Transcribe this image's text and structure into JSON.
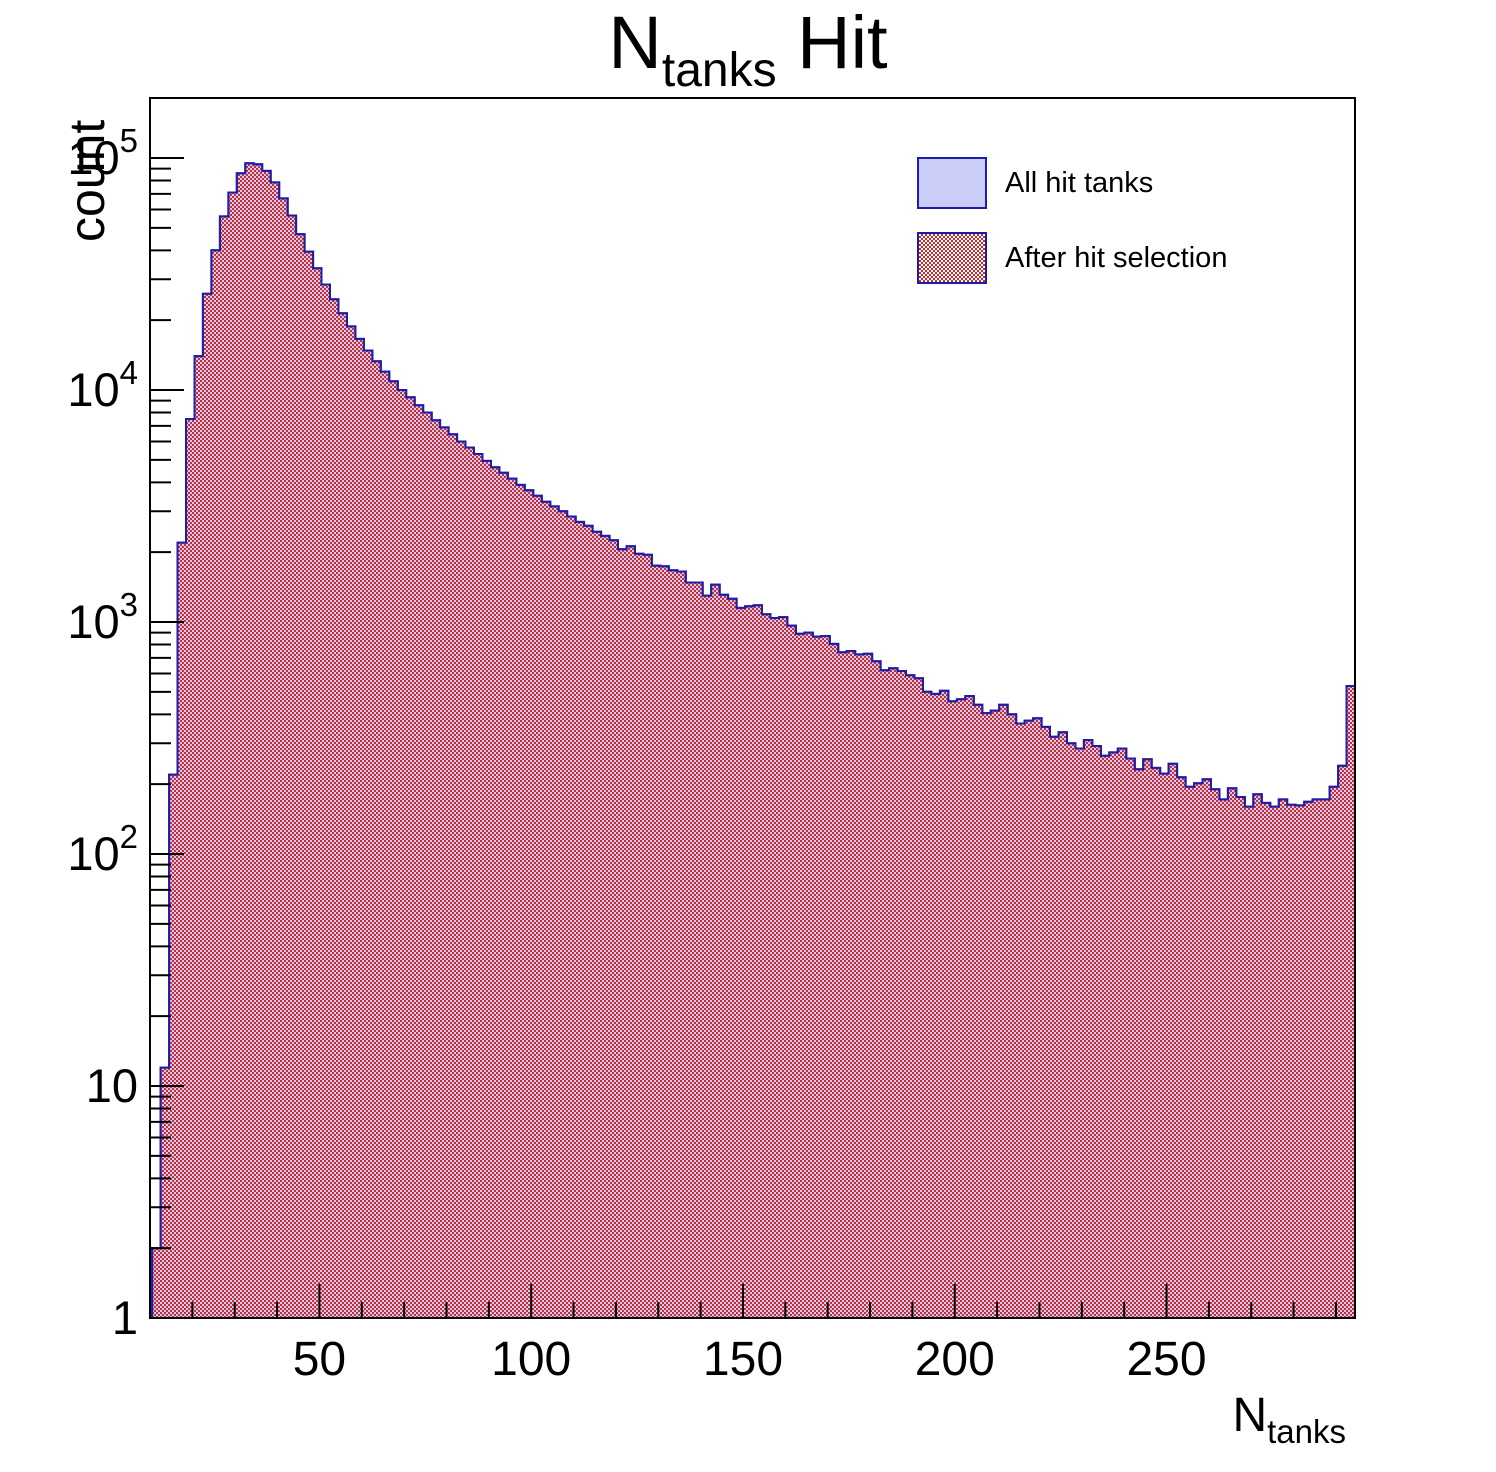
{
  "title": {
    "prefix": "N",
    "subscript": "tanks",
    "suffix": " Hit"
  },
  "axes": {
    "y_label": "count",
    "x_label_prefix": "N",
    "x_label_subscript": "tanks",
    "y_tick_labels": [
      {
        "base": "1",
        "exp": "",
        "value": 1
      },
      {
        "base": "10",
        "exp": "",
        "value": 10
      },
      {
        "base": "10",
        "exp": "2",
        "value": 100
      },
      {
        "base": "10",
        "exp": "3",
        "value": 1000
      },
      {
        "base": "10",
        "exp": "4",
        "value": 10000
      },
      {
        "base": "10",
        "exp": "5",
        "value": 100000
      }
    ],
    "x_tick_labels": [
      "50",
      "100",
      "150",
      "200",
      "250"
    ]
  },
  "legend": {
    "items": [
      {
        "label": "All hit tanks",
        "swatch": "lavender-solid"
      },
      {
        "label": "After hit selection",
        "swatch": "red-checker"
      }
    ]
  },
  "colors": {
    "frame": "#000000",
    "histogram_edge": "#1d1da8",
    "all_hit_fill": "#ccccf8",
    "selection_red": "#cc2b2b",
    "background": "#ffffff",
    "text": "#000000"
  },
  "chart_data": {
    "type": "bar",
    "subtype": "step-histogram-overlay",
    "title": "N_{tanks} Hit",
    "xlabel": "N_{tanks}",
    "ylabel": "count",
    "yscale": "log",
    "xlim": [
      10,
      294.5
    ],
    "ylim": [
      1,
      190000
    ],
    "x_start": 10.5,
    "bin_width": 2,
    "x_major_ticks": [
      50,
      100,
      150,
      200,
      250
    ],
    "x_minor_step": 10,
    "legend_position": "top-right-inside",
    "grid": false,
    "series": [
      {
        "name": "All hit tanks",
        "pattern": "solid",
        "fill": "#ccccf8",
        "edge": "#1d1da8"
      },
      {
        "name": "After hit selection",
        "pattern": "red-checker",
        "fill": "#cc2b2b",
        "edge": "#1d1da8"
      }
    ],
    "series_note": "Both histograms coincide everywhere at screenshot resolution; they share the bin counts below.",
    "counts": [
      2,
      12,
      220,
      2200,
      7500,
      14000,
      26000,
      40000,
      56000,
      71000,
      86000,
      95000,
      94000,
      88000,
      78500,
      67000,
      56500,
      47000,
      39500,
      33500,
      28500,
      24600,
      21400,
      18800,
      16600,
      14800,
      13300,
      12000,
      10900,
      10000,
      9300,
      8600,
      8000,
      7400,
      6900,
      6450,
      6000,
      5650,
      5300,
      4950,
      4650,
      4400,
      4150,
      3900,
      3700,
      3500,
      3300,
      3150,
      3000,
      2850,
      2700,
      2600,
      2450,
      2350,
      2250,
      2060,
      2120,
      1970,
      1950,
      1750,
      1740,
      1670,
      1650,
      1480,
      1480,
      1300,
      1450,
      1310,
      1260,
      1150,
      1170,
      1180,
      1080,
      1040,
      1050,
      965,
      890,
      900,
      865,
      870,
      805,
      740,
      750,
      725,
      730,
      678,
      620,
      632,
      615,
      590,
      572,
      500,
      490,
      505,
      455,
      465,
      480,
      440,
      405,
      415,
      440,
      400,
      365,
      376,
      385,
      353,
      320,
      335,
      300,
      285,
      310,
      292,
      265,
      274,
      285,
      258,
      232,
      256,
      235,
      222,
      245,
      214,
      195,
      202,
      210,
      190,
      172,
      192,
      176,
      160,
      181,
      166,
      160,
      172,
      163,
      162,
      168,
      172,
      172,
      195,
      240,
      530
    ]
  }
}
